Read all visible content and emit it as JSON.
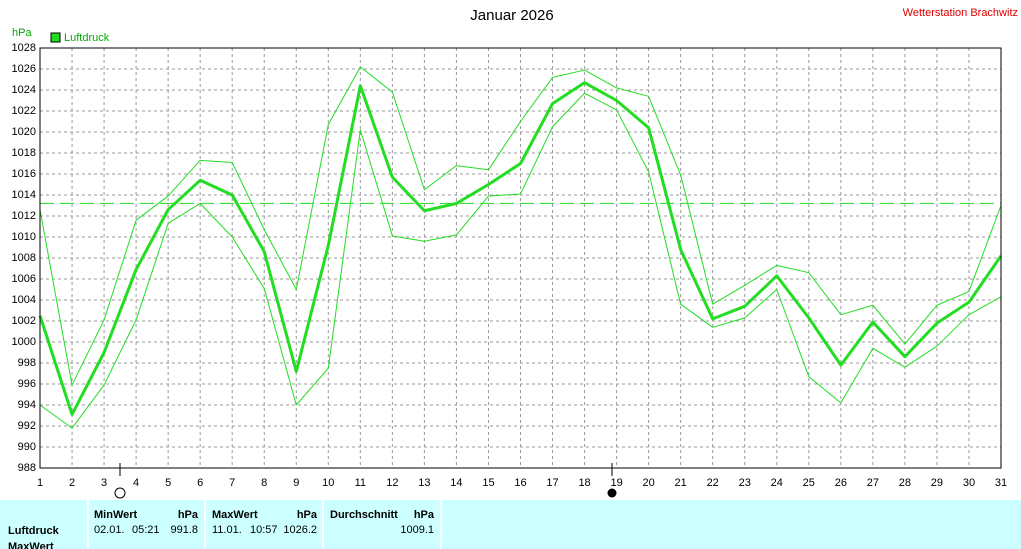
{
  "chart_data": {
    "type": "line",
    "title": "Januar 2026",
    "source": "Wetterstation Brachwitz",
    "y_label": "hPa",
    "x": [
      1,
      2,
      3,
      4,
      5,
      6,
      7,
      8,
      9,
      10,
      11,
      12,
      13,
      14,
      15,
      16,
      17,
      18,
      19,
      20,
      21,
      22,
      23,
      24,
      25,
      26,
      27,
      28,
      29,
      30,
      31
    ],
    "xlim": [
      1,
      31
    ],
    "xticks": [
      1,
      2,
      3,
      4,
      5,
      6,
      7,
      8,
      9,
      10,
      11,
      12,
      13,
      14,
      15,
      16,
      17,
      18,
      19,
      20,
      21,
      22,
      23,
      24,
      25,
      26,
      27,
      28,
      29,
      30,
      31
    ],
    "ylim": [
      988,
      1028
    ],
    "yticks": [
      988,
      990,
      992,
      994,
      996,
      998,
      1000,
      1002,
      1004,
      1006,
      1008,
      1010,
      1012,
      1014,
      1016,
      1018,
      1020,
      1022,
      1024,
      1026,
      1028
    ],
    "grid": true,
    "reference_line": 1013.2,
    "series": [
      {
        "name": "Luftdruck",
        "color": "#22dd22",
        "values": [
          1002.5,
          993.1,
          999.0,
          1006.9,
          1012.6,
          1015.4,
          1014.0,
          1008.6,
          997.2,
          1009.2,
          1024.4,
          1015.7,
          1012.5,
          1013.2,
          1015.0,
          1017.0,
          1022.7,
          1024.7,
          1023.0,
          1020.4,
          1008.8,
          1002.2,
          1003.4,
          1006.3,
          1002.3,
          997.8,
          1001.9,
          998.6,
          1001.8,
          1003.8,
          1008.2
        ]
      },
      {
        "color": "#22dd22",
        "values": [
          1012.6,
          995.9,
          1002.1,
          1011.6,
          1013.9,
          1017.3,
          1017.1,
          1010.7,
          1005.0,
          1020.7,
          1026.2,
          1023.8,
          1014.5,
          1016.8,
          1016.4,
          1021.0,
          1025.2,
          1025.9,
          1024.2,
          1023.4,
          1015.9,
          1003.6,
          1005.4,
          1007.3,
          1006.6,
          1002.6,
          1003.5,
          999.8,
          1003.5,
          1004.8,
          1013.0
        ]
      },
      {
        "color": "#22dd22",
        "values": [
          994.0,
          991.8,
          995.9,
          1002.1,
          1011.3,
          1013.2,
          1010.0,
          1005.1,
          994.0,
          997.5,
          1020.2,
          1010.1,
          1009.6,
          1010.2,
          1013.9,
          1014.1,
          1020.5,
          1023.7,
          1022.1,
          1016.2,
          1003.6,
          1001.4,
          1002.3,
          1005.0,
          996.7,
          994.2,
          999.4,
          997.6,
          999.6,
          1002.6,
          1004.3
        ]
      }
    ]
  },
  "table": {
    "columns": [
      {
        "title": "MinWert",
        "unit": "hPa"
      },
      {
        "title": "MaxWert",
        "unit": "hPa"
      },
      {
        "title": "Durchschnitt",
        "unit": "hPa"
      }
    ],
    "rows": [
      {
        "label": "Luftdruck",
        "min": {
          "date": "02.01.",
          "time": "05:21",
          "value": "991.8"
        },
        "max": {
          "date": "11.01.",
          "time": "10:57",
          "value": "1026.2"
        },
        "avg": {
          "value": "1009.1"
        }
      },
      {
        "label": "MaxWert"
      }
    ]
  }
}
